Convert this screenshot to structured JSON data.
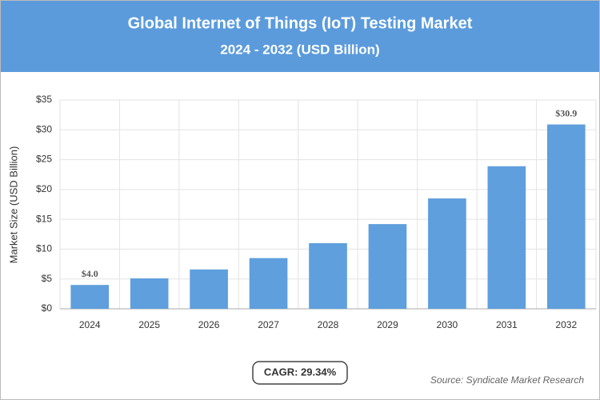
{
  "chart_data": {
    "type": "bar",
    "title": "Global Internet of Things (IoT) Testing Market",
    "subtitle": "2024 - 2032 (USD Billion)",
    "y_label": "Market Size (USD Billion)",
    "categories": [
      "2024",
      "2025",
      "2026",
      "2027",
      "2028",
      "2029",
      "2030",
      "2031",
      "2032"
    ],
    "values": [
      4.0,
      5.1,
      6.6,
      8.5,
      11.0,
      14.2,
      18.5,
      23.9,
      30.9
    ],
    "value_labels": [
      "$4.0",
      null,
      null,
      null,
      null,
      null,
      null,
      null,
      "$30.9"
    ],
    "color": "#5f9fdd",
    "ylim": [
      0,
      35
    ],
    "yticks": [
      {
        "value": 0,
        "label": "$0"
      },
      {
        "value": 5,
        "label": "$5"
      },
      {
        "value": 10,
        "label": "$10"
      },
      {
        "value": 15,
        "label": "$15"
      },
      {
        "value": 20,
        "label": "$20"
      },
      {
        "value": 25,
        "label": "$25"
      },
      {
        "value": 30,
        "label": "$30"
      },
      {
        "value": 35,
        "label": "$35"
      }
    ],
    "grid": true,
    "annotation": "CAGR: 29.34%",
    "source": "Source: Syndicate Market Research"
  }
}
